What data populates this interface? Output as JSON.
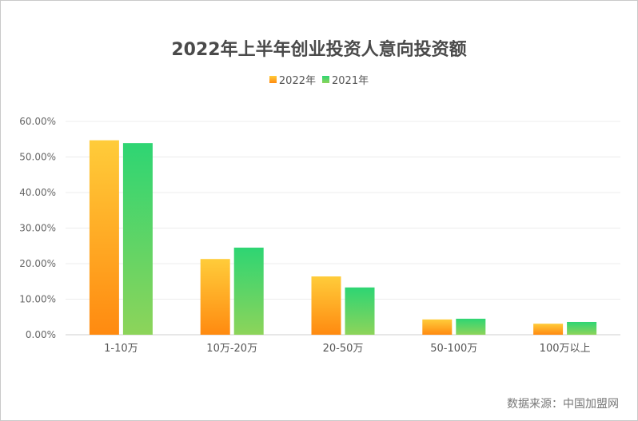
{
  "chart_data": {
    "type": "bar",
    "title": "2022年上半年创业投资人意向投资额",
    "categories": [
      "1-10万",
      "10万-20万",
      "20-50万",
      "50-100万",
      "100万以上"
    ],
    "series": [
      {
        "name": "2022年",
        "values": [
          54.7,
          21.3,
          16.4,
          4.3,
          3.1
        ],
        "color_top": "#ffcc3a",
        "color_bottom": "#ff8a10"
      },
      {
        "name": "2021年",
        "values": [
          53.9,
          24.5,
          13.3,
          4.5,
          3.6
        ],
        "color_top": "#2ed573",
        "color_bottom": "#8dd45a"
      }
    ],
    "yticks": [
      "0.00%",
      "10.00%",
      "20.00%",
      "30.00%",
      "40.00%",
      "50.00%",
      "60.00%"
    ],
    "ylim": [
      0,
      60
    ],
    "grid": true,
    "legend_position": "top-center",
    "xlabel": "",
    "ylabel": ""
  },
  "source": "数据来源：中国加盟网"
}
